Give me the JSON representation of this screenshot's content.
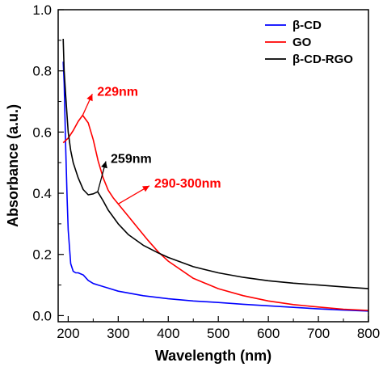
{
  "chart_data": {
    "type": "line",
    "xlabel": "Wavelength (nm)",
    "ylabel": "Absorbance (a.u.)",
    "xlim": [
      180,
      800
    ],
    "ylim": [
      -0.02,
      1.0
    ],
    "x_ticks": [
      200,
      300,
      400,
      500,
      600,
      700,
      800
    ],
    "y_ticks": [
      0.0,
      0.2,
      0.4,
      0.6,
      0.8,
      1.0
    ],
    "x_tick_labels": [
      "200",
      "300",
      "400",
      "500",
      "600",
      "700",
      "800"
    ],
    "y_tick_labels": [
      "0.0",
      "0.2",
      "0.4",
      "0.6",
      "0.8",
      "1.0"
    ],
    "grid": false,
    "legend_position": "top-right",
    "series": [
      {
        "name": "β-CD",
        "color": "#0000ff",
        "x": [
          190,
          192,
          195,
          198,
          200,
          205,
          210,
          215,
          220,
          230,
          240,
          250,
          260,
          280,
          300,
          350,
          400,
          450,
          500,
          550,
          600,
          650,
          700,
          750,
          800
        ],
        "y": [
          0.83,
          0.76,
          0.55,
          0.38,
          0.28,
          0.17,
          0.145,
          0.14,
          0.14,
          0.133,
          0.115,
          0.105,
          0.1,
          0.09,
          0.08,
          0.065,
          0.055,
          0.048,
          0.043,
          0.037,
          0.032,
          0.027,
          0.022,
          0.018,
          0.015
        ]
      },
      {
        "name": "GO",
        "color": "#ff0000",
        "x": [
          190,
          200,
          210,
          220,
          229,
          240,
          250,
          260,
          270,
          280,
          290,
          300,
          320,
          340,
          360,
          380,
          400,
          450,
          500,
          550,
          600,
          650,
          700,
          750,
          800
        ],
        "y": [
          0.565,
          0.58,
          0.605,
          0.635,
          0.655,
          0.63,
          0.575,
          0.505,
          0.45,
          0.41,
          0.385,
          0.365,
          0.325,
          0.285,
          0.245,
          0.208,
          0.178,
          0.122,
          0.088,
          0.065,
          0.048,
          0.036,
          0.028,
          0.021,
          0.017
        ]
      },
      {
        "name": "β-CD-RGO",
        "color": "#000000",
        "x": [
          190,
          192,
          195,
          198,
          200,
          205,
          210,
          220,
          230,
          240,
          250,
          259,
          270,
          280,
          300,
          320,
          350,
          380,
          400,
          450,
          500,
          550,
          600,
          650,
          700,
          750,
          800
        ],
        "y": [
          0.905,
          0.8,
          0.72,
          0.65,
          0.6,
          0.54,
          0.5,
          0.45,
          0.412,
          0.395,
          0.398,
          0.405,
          0.375,
          0.345,
          0.3,
          0.265,
          0.23,
          0.205,
          0.19,
          0.16,
          0.14,
          0.125,
          0.114,
          0.106,
          0.1,
          0.094,
          0.088
        ]
      }
    ],
    "annotations": [
      {
        "text": "229nm",
        "color": "#ff0000",
        "x": 229,
        "y": 0.655,
        "label_x": 258,
        "label_y": 0.735
      },
      {
        "text": "259nm",
        "color": "#000000",
        "x": 259,
        "y": 0.405,
        "label_x": 285,
        "label_y": 0.515
      },
      {
        "text": "290-300nm",
        "color": "#ff0000",
        "x": 300,
        "y": 0.365,
        "label_x": 372,
        "label_y": 0.435
      }
    ]
  }
}
